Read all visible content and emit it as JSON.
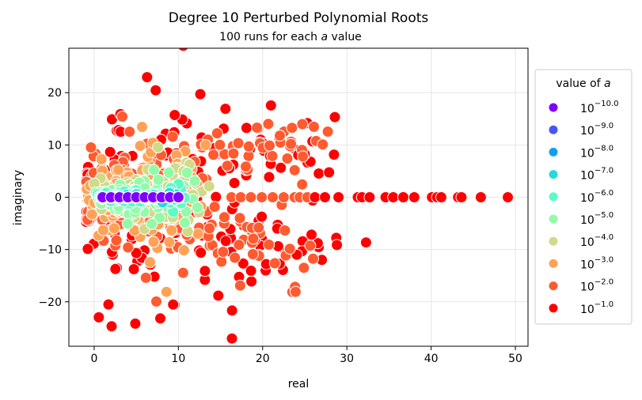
{
  "chart_data": {
    "type": "scatter",
    "title": "Degree 10 Perturbed Polynomial Roots",
    "subtitle_prefix": "100 runs for each ",
    "subtitle_var": "a",
    "subtitle_suffix": " value",
    "xlabel": "real",
    "ylabel": "imaginary",
    "xlim": [
      -3,
      51.5
    ],
    "ylim": [
      -28.5,
      28.5
    ],
    "xticks": [
      0,
      10,
      20,
      30,
      40,
      50
    ],
    "yticks": [
      -20,
      -10,
      0,
      10,
      20
    ],
    "ytick_labels": [
      "−20",
      "−10",
      "0",
      "10",
      "20"
    ],
    "grid": true,
    "legend": {
      "title_prefix": "value of ",
      "title_var": "a",
      "placement": "right, outside plot",
      "base": "10",
      "entries": [
        {
          "exp": "−10.0",
          "color": "#7f00ff"
        },
        {
          "exp": "−9.0",
          "color": "#4755f9"
        },
        {
          "exp": "−8.0",
          "color": "#12a0ee"
        },
        {
          "exp": "−7.0",
          "color": "#25dadb"
        },
        {
          "exp": "−6.0",
          "color": "#5cfbc3"
        },
        {
          "exp": "−5.0",
          "color": "#92fba8"
        },
        {
          "exp": "−4.0",
          "color": "#d0da88"
        },
        {
          "exp": "−3.0",
          "color": "#ffa256"
        },
        {
          "exp": "−2.0",
          "color": "#ff5a30"
        },
        {
          "exp": "−1.0",
          "color": "#ff0000"
        }
      ]
    },
    "roots": [
      1,
      2,
      3,
      4,
      5,
      6,
      7,
      8,
      9,
      10
    ],
    "real_axis_points_a_1e-1": [
      26.2,
      27.4,
      29.0,
      31.3,
      31.8,
      32.7,
      34.6,
      35.5,
      36.7,
      38.0,
      40.1,
      40.7,
      41.2,
      43.2,
      43.6,
      45.9,
      49.1
    ],
    "real_axis_points_a_1e-2": [
      16.3,
      17.4,
      18.6,
      19.9,
      21.2,
      22.5,
      23.8,
      24.4,
      25.3
    ]
  }
}
